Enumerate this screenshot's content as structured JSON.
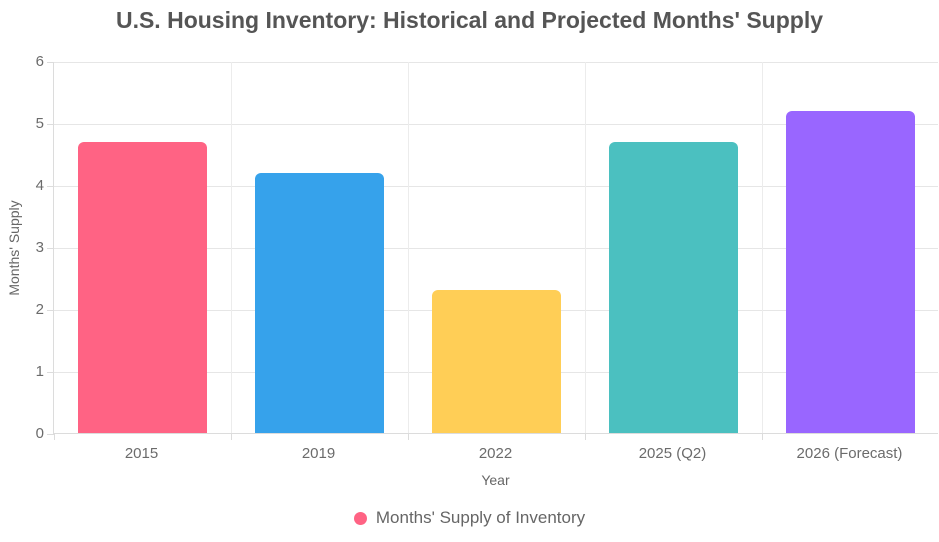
{
  "chart_data": {
    "type": "bar",
    "title": "U.S. Housing Inventory: Historical and Projected Months' Supply",
    "categories": [
      "2015",
      "2019",
      "2022",
      "2025 (Q2)",
      "2026 (Forecast)"
    ],
    "values": [
      4.7,
      4.2,
      2.3,
      4.7,
      5.2
    ],
    "bar_colors": [
      "#FF6384",
      "#36A2EB",
      "#FFCE56",
      "#4BC0C0",
      "#9966FF"
    ],
    "xlabel": "Year",
    "ylabel": "Months' Supply",
    "ylim": [
      0,
      6
    ],
    "ytick_step": 1,
    "yticks": [
      "0",
      "1",
      "2",
      "3",
      "4",
      "5",
      "6"
    ],
    "grid": true,
    "legend": {
      "label": "Months' Supply of Inventory",
      "color": "#FF6384",
      "position": "bottom"
    },
    "colors": {
      "title_text": "#555555",
      "axis_text": "#666666",
      "gridline": "#e6e6e6"
    }
  }
}
